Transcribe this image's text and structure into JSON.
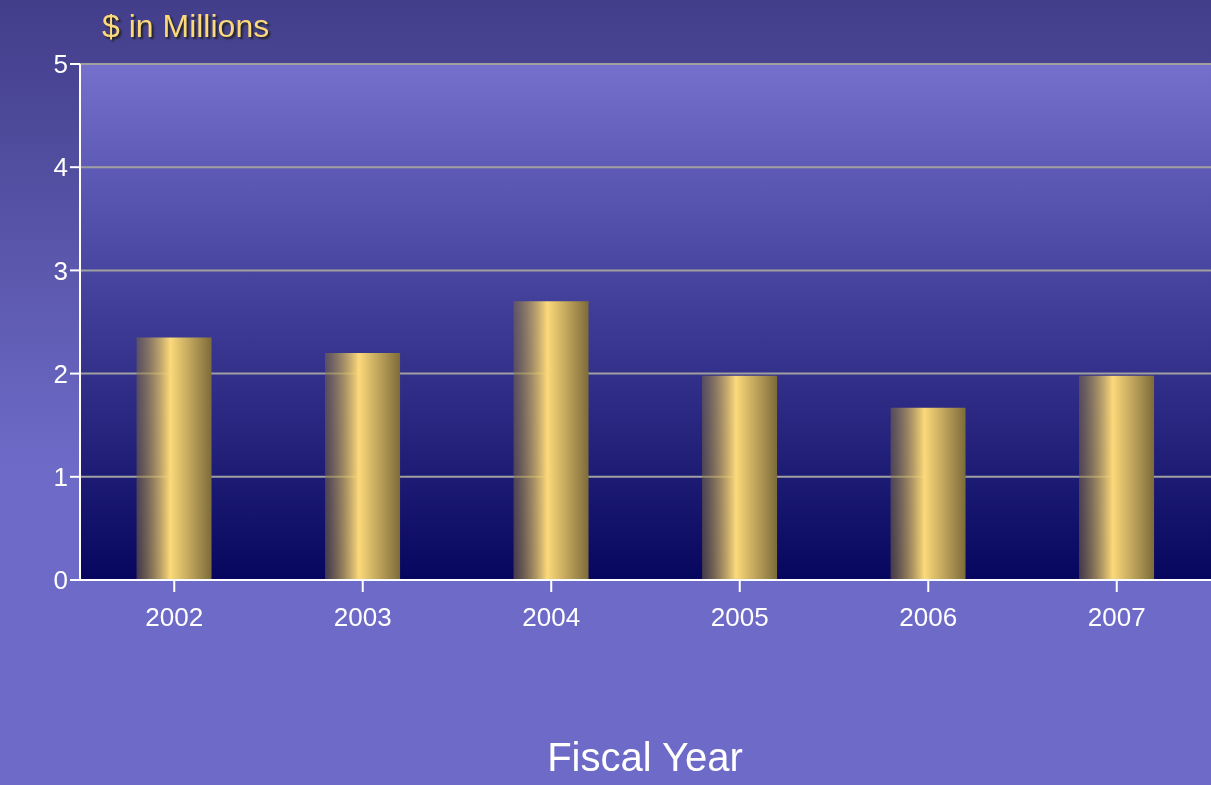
{
  "chart_data": {
    "type": "bar",
    "ylabel": "$ in Millions",
    "xlabel": "Fiscal Year",
    "categories": [
      "2002",
      "2003",
      "2004",
      "2005",
      "2006",
      "2007"
    ],
    "values": [
      2.35,
      2.2,
      2.7,
      1.98,
      1.67,
      1.98
    ],
    "color": "#fcd97a",
    "ylim": [
      0,
      5
    ],
    "yticks": [
      0,
      1,
      2,
      3,
      4,
      5
    ],
    "grid": "y"
  }
}
